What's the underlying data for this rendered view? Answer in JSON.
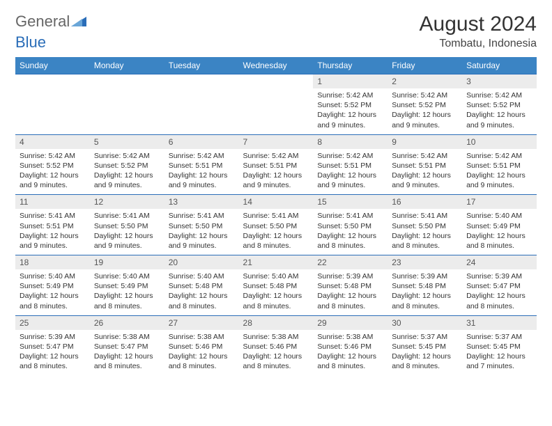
{
  "logo": {
    "text1": "General",
    "text2": "Blue"
  },
  "title": "August 2024",
  "location": "Tombatu, Indonesia",
  "columns": [
    "Sunday",
    "Monday",
    "Tuesday",
    "Wednesday",
    "Thursday",
    "Friday",
    "Saturday"
  ],
  "colors": {
    "header_bg": "#3b84c4",
    "header_text": "#ffffff",
    "daynum_bg": "#ececec",
    "row_border": "#2a6db8",
    "logo_blue": "#2a6db8"
  },
  "weeks": [
    [
      null,
      null,
      null,
      null,
      {
        "n": "1",
        "sunrise": "5:42 AM",
        "sunset": "5:52 PM",
        "daylight": "12 hours and 9 minutes."
      },
      {
        "n": "2",
        "sunrise": "5:42 AM",
        "sunset": "5:52 PM",
        "daylight": "12 hours and 9 minutes."
      },
      {
        "n": "3",
        "sunrise": "5:42 AM",
        "sunset": "5:52 PM",
        "daylight": "12 hours and 9 minutes."
      }
    ],
    [
      {
        "n": "4",
        "sunrise": "5:42 AM",
        "sunset": "5:52 PM",
        "daylight": "12 hours and 9 minutes."
      },
      {
        "n": "5",
        "sunrise": "5:42 AM",
        "sunset": "5:52 PM",
        "daylight": "12 hours and 9 minutes."
      },
      {
        "n": "6",
        "sunrise": "5:42 AM",
        "sunset": "5:51 PM",
        "daylight": "12 hours and 9 minutes."
      },
      {
        "n": "7",
        "sunrise": "5:42 AM",
        "sunset": "5:51 PM",
        "daylight": "12 hours and 9 minutes."
      },
      {
        "n": "8",
        "sunrise": "5:42 AM",
        "sunset": "5:51 PM",
        "daylight": "12 hours and 9 minutes."
      },
      {
        "n": "9",
        "sunrise": "5:42 AM",
        "sunset": "5:51 PM",
        "daylight": "12 hours and 9 minutes."
      },
      {
        "n": "10",
        "sunrise": "5:42 AM",
        "sunset": "5:51 PM",
        "daylight": "12 hours and 9 minutes."
      }
    ],
    [
      {
        "n": "11",
        "sunrise": "5:41 AM",
        "sunset": "5:51 PM",
        "daylight": "12 hours and 9 minutes."
      },
      {
        "n": "12",
        "sunrise": "5:41 AM",
        "sunset": "5:50 PM",
        "daylight": "12 hours and 9 minutes."
      },
      {
        "n": "13",
        "sunrise": "5:41 AM",
        "sunset": "5:50 PM",
        "daylight": "12 hours and 9 minutes."
      },
      {
        "n": "14",
        "sunrise": "5:41 AM",
        "sunset": "5:50 PM",
        "daylight": "12 hours and 8 minutes."
      },
      {
        "n": "15",
        "sunrise": "5:41 AM",
        "sunset": "5:50 PM",
        "daylight": "12 hours and 8 minutes."
      },
      {
        "n": "16",
        "sunrise": "5:41 AM",
        "sunset": "5:50 PM",
        "daylight": "12 hours and 8 minutes."
      },
      {
        "n": "17",
        "sunrise": "5:40 AM",
        "sunset": "5:49 PM",
        "daylight": "12 hours and 8 minutes."
      }
    ],
    [
      {
        "n": "18",
        "sunrise": "5:40 AM",
        "sunset": "5:49 PM",
        "daylight": "12 hours and 8 minutes."
      },
      {
        "n": "19",
        "sunrise": "5:40 AM",
        "sunset": "5:49 PM",
        "daylight": "12 hours and 8 minutes."
      },
      {
        "n": "20",
        "sunrise": "5:40 AM",
        "sunset": "5:48 PM",
        "daylight": "12 hours and 8 minutes."
      },
      {
        "n": "21",
        "sunrise": "5:40 AM",
        "sunset": "5:48 PM",
        "daylight": "12 hours and 8 minutes."
      },
      {
        "n": "22",
        "sunrise": "5:39 AM",
        "sunset": "5:48 PM",
        "daylight": "12 hours and 8 minutes."
      },
      {
        "n": "23",
        "sunrise": "5:39 AM",
        "sunset": "5:48 PM",
        "daylight": "12 hours and 8 minutes."
      },
      {
        "n": "24",
        "sunrise": "5:39 AM",
        "sunset": "5:47 PM",
        "daylight": "12 hours and 8 minutes."
      }
    ],
    [
      {
        "n": "25",
        "sunrise": "5:39 AM",
        "sunset": "5:47 PM",
        "daylight": "12 hours and 8 minutes."
      },
      {
        "n": "26",
        "sunrise": "5:38 AM",
        "sunset": "5:47 PM",
        "daylight": "12 hours and 8 minutes."
      },
      {
        "n": "27",
        "sunrise": "5:38 AM",
        "sunset": "5:46 PM",
        "daylight": "12 hours and 8 minutes."
      },
      {
        "n": "28",
        "sunrise": "5:38 AM",
        "sunset": "5:46 PM",
        "daylight": "12 hours and 8 minutes."
      },
      {
        "n": "29",
        "sunrise": "5:38 AM",
        "sunset": "5:46 PM",
        "daylight": "12 hours and 8 minutes."
      },
      {
        "n": "30",
        "sunrise": "5:37 AM",
        "sunset": "5:45 PM",
        "daylight": "12 hours and 8 minutes."
      },
      {
        "n": "31",
        "sunrise": "5:37 AM",
        "sunset": "5:45 PM",
        "daylight": "12 hours and 7 minutes."
      }
    ]
  ],
  "labels": {
    "sunrise": "Sunrise: ",
    "sunset": "Sunset: ",
    "daylight": "Daylight: "
  }
}
